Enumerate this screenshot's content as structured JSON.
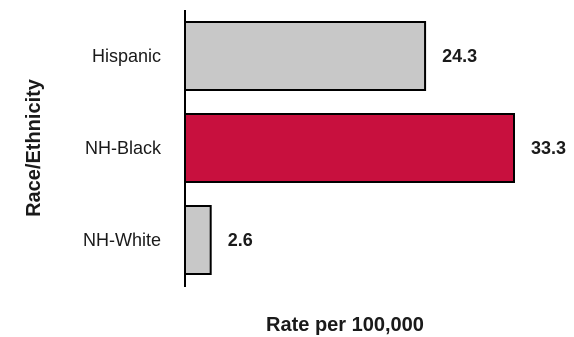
{
  "chart_data": {
    "type": "bar",
    "orientation": "horizontal",
    "title": "",
    "xlabel": "Rate per 100,000",
    "ylabel": "Race/Ethnicity",
    "categories": [
      "Hispanic",
      "NH-Black",
      "NH-White"
    ],
    "values": [
      24.3,
      33.3,
      2.6
    ],
    "value_labels": [
      "24.3",
      "33.3",
      "2.6"
    ],
    "xlim": [
      0,
      33.3
    ],
    "grid": false,
    "legend": "none",
    "bar_colors": [
      "#c8c8c8",
      "#c8103e",
      "#c8c8c8"
    ],
    "bar_outline": "#000000"
  }
}
